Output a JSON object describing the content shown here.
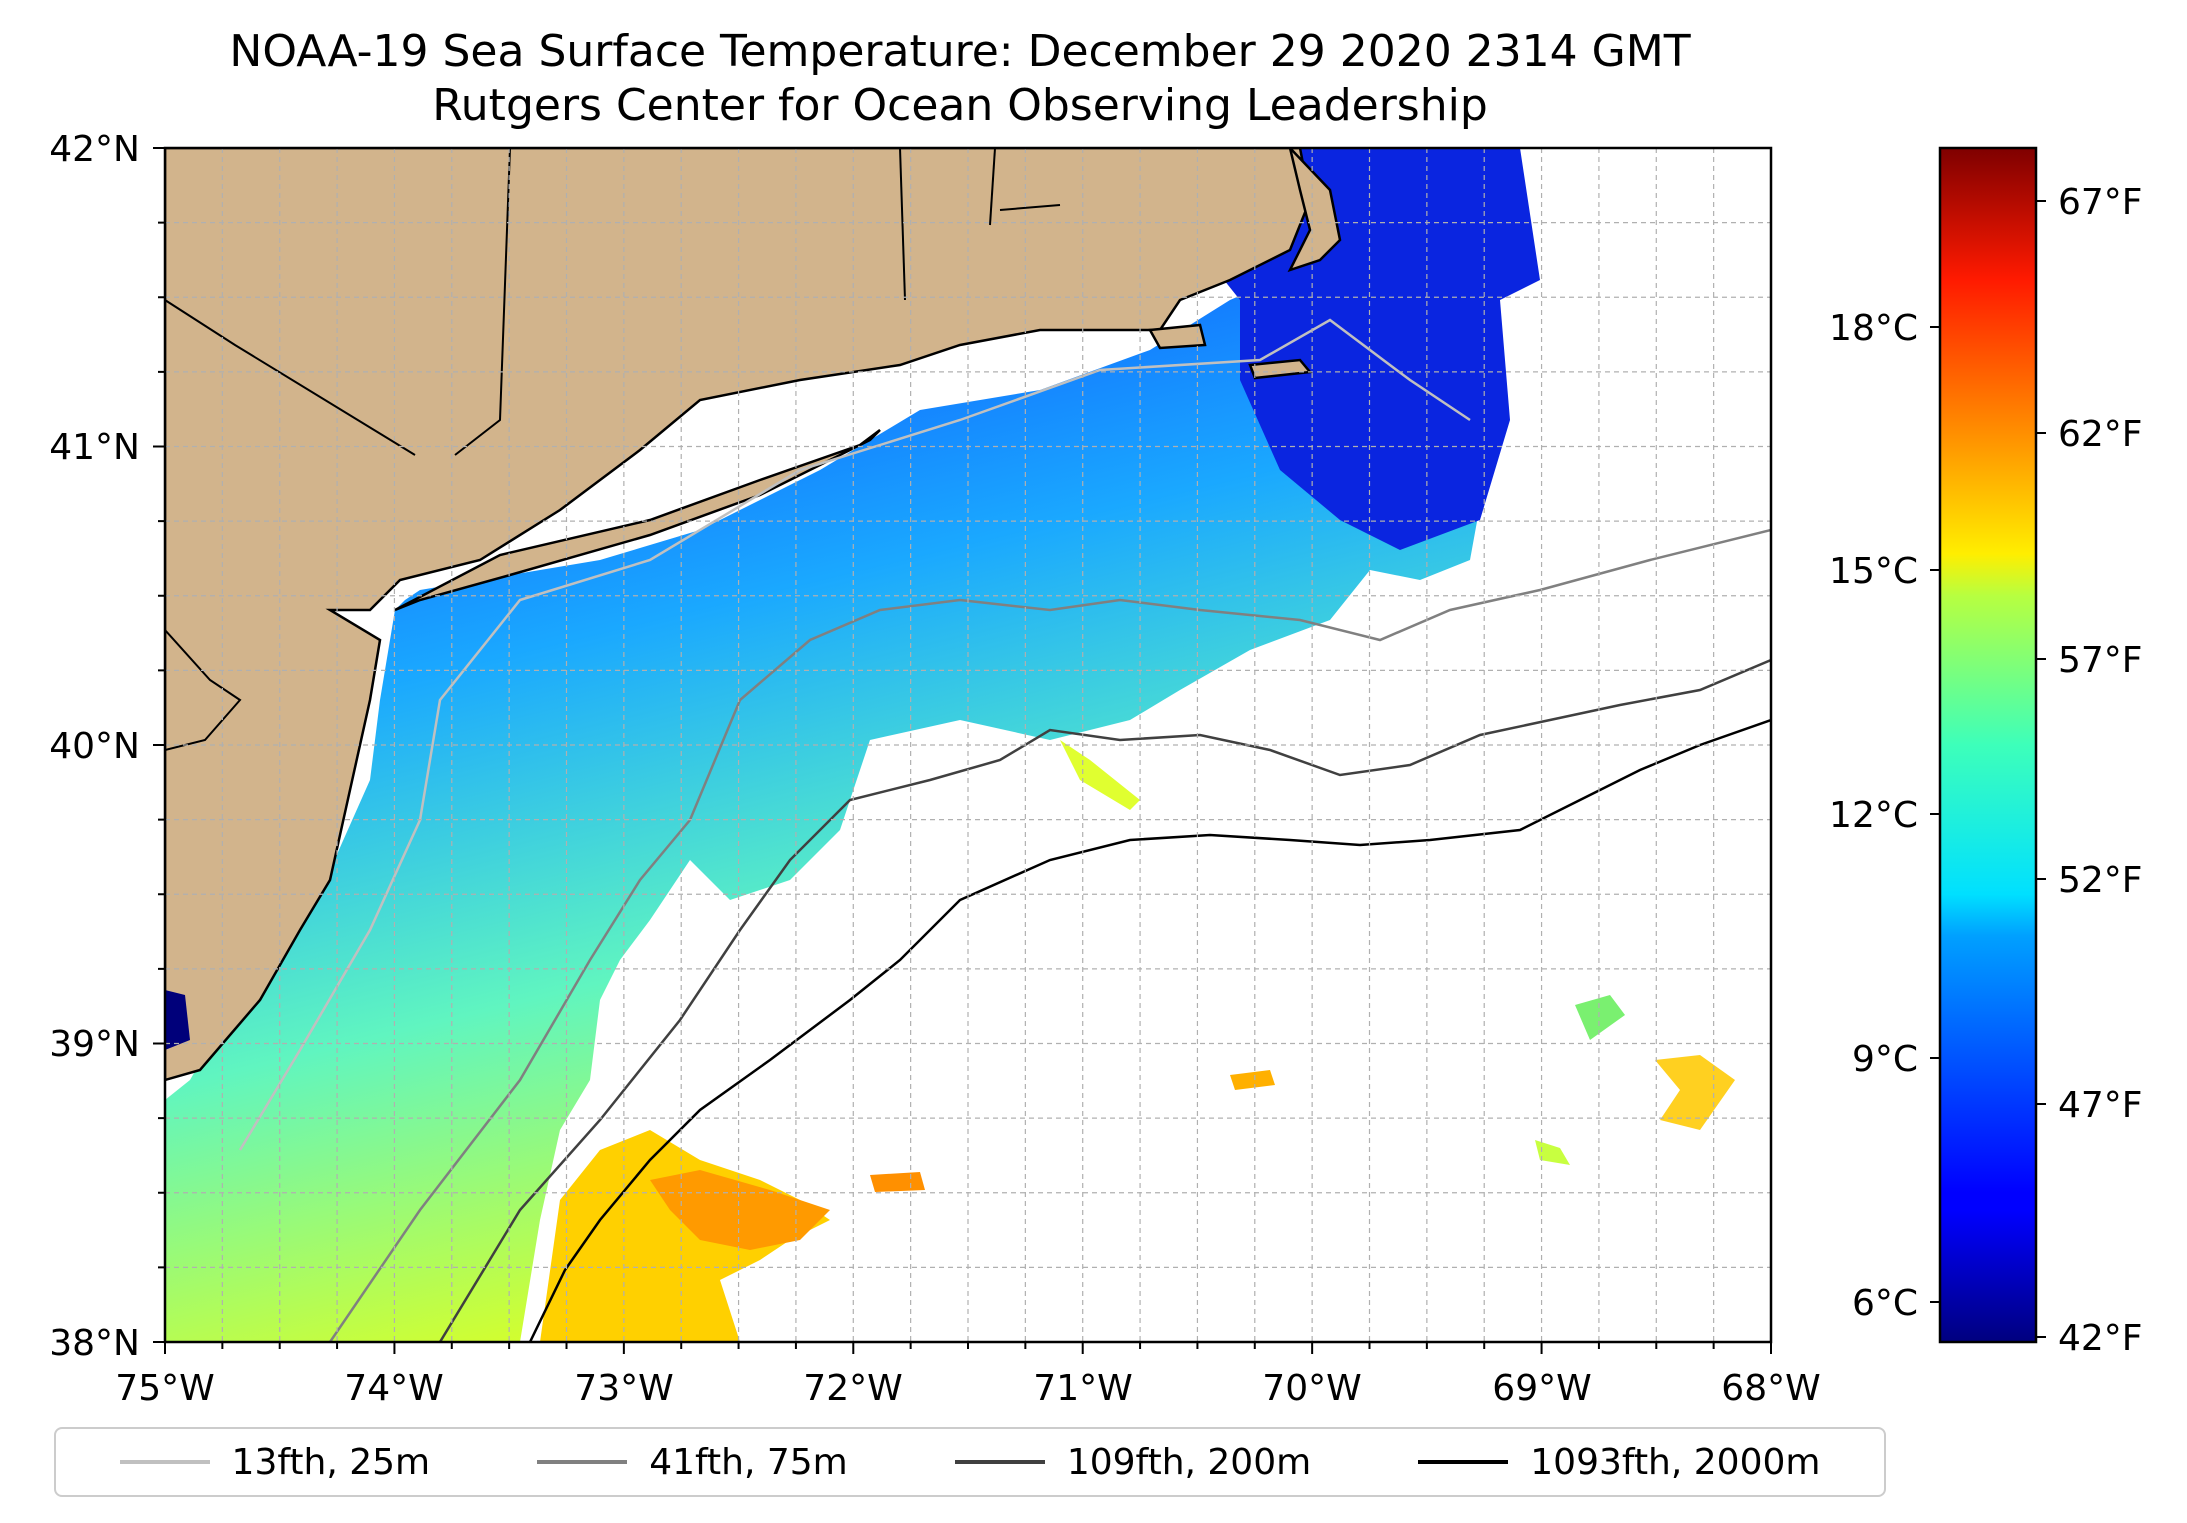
{
  "title": "NOAA-19 Sea Surface Temperature: December 29 2020 2314 GMT",
  "subtitle": "Rutgers Center for Ocean Observing Leadership",
  "map": {
    "lon_range": [
      -75,
      -68
    ],
    "lat_range": [
      38,
      42
    ],
    "lon_labels": [
      "75°W",
      "74°W",
      "73°W",
      "72°W",
      "71°W",
      "70°W",
      "69°W",
      "68°W"
    ],
    "lat_labels": [
      "38°N",
      "39°N",
      "40°N",
      "41°N",
      "42°N"
    ],
    "colors": {
      "land": "#d2b48c",
      "no_data": "#ffffff",
      "grid": "#b0b0b0"
    }
  },
  "colorbar": {
    "colormap": "jet",
    "celsius_labels": [
      "6°C",
      "9°C",
      "12°C",
      "15°C",
      "18°C"
    ],
    "fahrenheit_labels": [
      "42°F",
      "47°F",
      "52°F",
      "57°F",
      "62°F",
      "67°F"
    ]
  },
  "legend": [
    {
      "label": "13fth, 25m",
      "color": "#c0c0c0"
    },
    {
      "label": "41fth, 75m",
      "color": "#808080"
    },
    {
      "label": "109fth, 200m",
      "color": "#404040"
    },
    {
      "label": "1093fth, 2000m",
      "color": "#000000"
    }
  ]
}
